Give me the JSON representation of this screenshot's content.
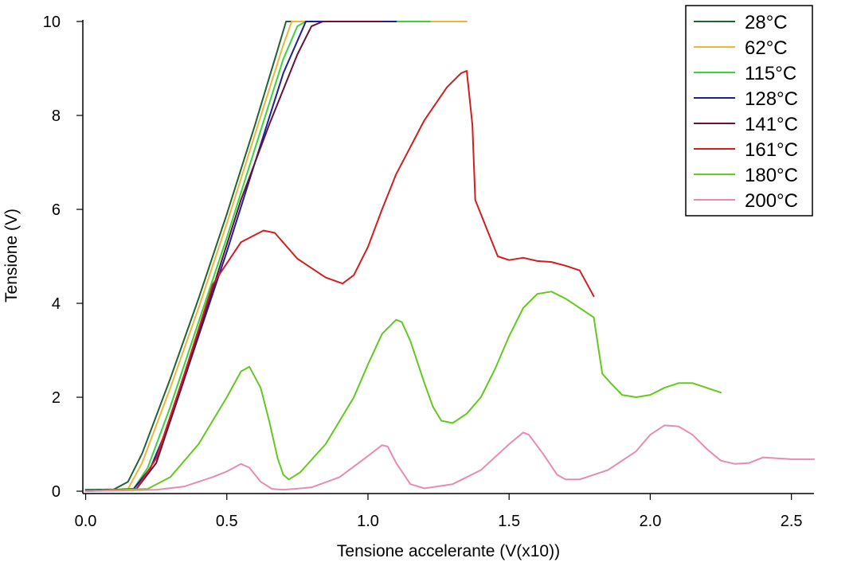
{
  "chart_data": {
    "type": "line",
    "title": "",
    "xlabel": "Tensione accelerante (V(x10))",
    "ylabel": "Tensione (V)",
    "xlim": [
      -0.01,
      2.58
    ],
    "ylim": [
      -0.05,
      10.0
    ],
    "xticks": [
      0.0,
      0.5,
      1.0,
      1.5,
      2.0,
      2.5
    ],
    "xtick_labels": [
      "0.0",
      "0.5",
      "1.0",
      "1.5",
      "2.0",
      "2.5"
    ],
    "yticks": [
      0,
      2,
      4,
      6,
      8,
      10
    ],
    "ytick_labels": [
      "0",
      "2",
      "4",
      "6",
      "8",
      "10"
    ],
    "legend_position": "top-right",
    "series": [
      {
        "name": "28°C",
        "color": "#1e6432",
        "points": [
          [
            0.0,
            0.03
          ],
          [
            0.1,
            0.04
          ],
          [
            0.15,
            0.2
          ],
          [
            0.2,
            0.8
          ],
          [
            0.3,
            2.4
          ],
          [
            0.4,
            4.1
          ],
          [
            0.5,
            5.9
          ],
          [
            0.6,
            7.8
          ],
          [
            0.68,
            9.4
          ],
          [
            0.71,
            10.0
          ],
          [
            0.8,
            10.0
          ]
        ]
      },
      {
        "name": "62°C",
        "color": "#f0b43c",
        "points": [
          [
            0.0,
            0.0
          ],
          [
            0.15,
            0.05
          ],
          [
            0.2,
            0.6
          ],
          [
            0.3,
            2.2
          ],
          [
            0.4,
            3.9
          ],
          [
            0.5,
            5.7
          ],
          [
            0.6,
            7.6
          ],
          [
            0.7,
            9.5
          ],
          [
            0.73,
            10.0
          ],
          [
            1.35,
            10.0
          ]
        ]
      },
      {
        "name": "115°C",
        "color": "#3cd23c",
        "points": [
          [
            0.0,
            0.0
          ],
          [
            0.17,
            0.05
          ],
          [
            0.22,
            0.5
          ],
          [
            0.3,
            1.8
          ],
          [
            0.4,
            3.6
          ],
          [
            0.5,
            5.4
          ],
          [
            0.6,
            7.3
          ],
          [
            0.7,
            9.2
          ],
          [
            0.75,
            9.9
          ],
          [
            0.78,
            10.0
          ],
          [
            1.22,
            10.0
          ]
        ]
      },
      {
        "name": "128°C",
        "color": "#1e1e96",
        "points": [
          [
            0.0,
            0.0
          ],
          [
            0.17,
            0.05
          ],
          [
            0.23,
            0.5
          ],
          [
            0.3,
            1.5
          ],
          [
            0.4,
            3.3
          ],
          [
            0.5,
            5.1
          ],
          [
            0.6,
            7.0
          ],
          [
            0.7,
            8.9
          ],
          [
            0.78,
            10.0
          ],
          [
            1.1,
            10.0
          ]
        ]
      },
      {
        "name": "141°C",
        "color": "#64143c",
        "points": [
          [
            0.0,
            0.0
          ],
          [
            0.18,
            0.05
          ],
          [
            0.25,
            0.6
          ],
          [
            0.35,
            2.4
          ],
          [
            0.45,
            4.3
          ],
          [
            0.55,
            6.2
          ],
          [
            0.65,
            7.8
          ],
          [
            0.75,
            9.3
          ],
          [
            0.8,
            9.9
          ],
          [
            0.84,
            10.0
          ],
          [
            1.05,
            10.0
          ]
        ]
      },
      {
        "name": "161°C",
        "color": "#d21e1e",
        "points": [
          [
            0.0,
            0.0
          ],
          [
            0.18,
            0.05
          ],
          [
            0.25,
            0.7
          ],
          [
            0.35,
            2.5
          ],
          [
            0.45,
            4.4
          ],
          [
            0.55,
            5.3
          ],
          [
            0.63,
            5.55
          ],
          [
            0.67,
            5.5
          ],
          [
            0.75,
            4.95
          ],
          [
            0.85,
            4.55
          ],
          [
            0.91,
            4.42
          ],
          [
            0.95,
            4.6
          ],
          [
            1.0,
            5.2
          ],
          [
            1.05,
            6.0
          ],
          [
            1.1,
            6.75
          ],
          [
            1.2,
            7.9
          ],
          [
            1.28,
            8.6
          ],
          [
            1.33,
            8.9
          ],
          [
            1.35,
            8.95
          ],
          [
            1.37,
            7.8
          ],
          [
            1.38,
            6.2
          ],
          [
            1.42,
            5.6
          ],
          [
            1.46,
            5.0
          ],
          [
            1.5,
            4.92
          ],
          [
            1.55,
            4.97
          ],
          [
            1.6,
            4.9
          ],
          [
            1.65,
            4.88
          ],
          [
            1.7,
            4.8
          ],
          [
            1.75,
            4.7
          ],
          [
            1.8,
            4.15
          ]
        ]
      },
      {
        "name": "180°C",
        "color": "#64c81e",
        "points": [
          [
            0.0,
            0.0
          ],
          [
            0.22,
            0.05
          ],
          [
            0.3,
            0.3
          ],
          [
            0.4,
            1.0
          ],
          [
            0.5,
            2.0
          ],
          [
            0.55,
            2.55
          ],
          [
            0.58,
            2.65
          ],
          [
            0.62,
            2.2
          ],
          [
            0.65,
            1.5
          ],
          [
            0.68,
            0.7
          ],
          [
            0.7,
            0.35
          ],
          [
            0.72,
            0.25
          ],
          [
            0.76,
            0.4
          ],
          [
            0.85,
            1.0
          ],
          [
            0.95,
            2.0
          ],
          [
            1.0,
            2.7
          ],
          [
            1.05,
            3.35
          ],
          [
            1.1,
            3.65
          ],
          [
            1.12,
            3.6
          ],
          [
            1.15,
            3.2
          ],
          [
            1.2,
            2.3
          ],
          [
            1.23,
            1.8
          ],
          [
            1.26,
            1.5
          ],
          [
            1.3,
            1.45
          ],
          [
            1.35,
            1.65
          ],
          [
            1.4,
            2.0
          ],
          [
            1.45,
            2.6
          ],
          [
            1.5,
            3.3
          ],
          [
            1.55,
            3.9
          ],
          [
            1.6,
            4.2
          ],
          [
            1.65,
            4.25
          ],
          [
            1.7,
            4.1
          ],
          [
            1.75,
            3.9
          ],
          [
            1.8,
            3.7
          ],
          [
            1.83,
            2.5
          ],
          [
            1.86,
            2.3
          ],
          [
            1.9,
            2.05
          ],
          [
            1.95,
            2.0
          ],
          [
            2.0,
            2.05
          ],
          [
            2.05,
            2.2
          ],
          [
            2.1,
            2.3
          ],
          [
            2.15,
            2.3
          ],
          [
            2.2,
            2.2
          ],
          [
            2.25,
            2.1
          ]
        ]
      },
      {
        "name": "200°C",
        "color": "#e68cb4",
        "points": [
          [
            0.0,
            0.0
          ],
          [
            0.25,
            0.03
          ],
          [
            0.35,
            0.1
          ],
          [
            0.45,
            0.3
          ],
          [
            0.5,
            0.42
          ],
          [
            0.55,
            0.58
          ],
          [
            0.58,
            0.5
          ],
          [
            0.62,
            0.2
          ],
          [
            0.66,
            0.05
          ],
          [
            0.7,
            0.03
          ],
          [
            0.8,
            0.08
          ],
          [
            0.9,
            0.3
          ],
          [
            1.0,
            0.75
          ],
          [
            1.05,
            0.98
          ],
          [
            1.07,
            0.95
          ],
          [
            1.1,
            0.6
          ],
          [
            1.15,
            0.15
          ],
          [
            1.2,
            0.06
          ],
          [
            1.3,
            0.15
          ],
          [
            1.4,
            0.45
          ],
          [
            1.5,
            1.0
          ],
          [
            1.55,
            1.25
          ],
          [
            1.57,
            1.2
          ],
          [
            1.62,
            0.8
          ],
          [
            1.67,
            0.35
          ],
          [
            1.7,
            0.25
          ],
          [
            1.75,
            0.25
          ],
          [
            1.85,
            0.45
          ],
          [
            1.95,
            0.85
          ],
          [
            2.0,
            1.2
          ],
          [
            2.05,
            1.4
          ],
          [
            2.1,
            1.38
          ],
          [
            2.15,
            1.2
          ],
          [
            2.2,
            0.9
          ],
          [
            2.25,
            0.65
          ],
          [
            2.3,
            0.58
          ],
          [
            2.35,
            0.6
          ],
          [
            2.4,
            0.72
          ],
          [
            2.45,
            0.7
          ],
          [
            2.5,
            0.68
          ],
          [
            2.58,
            0.68
          ]
        ]
      }
    ]
  }
}
